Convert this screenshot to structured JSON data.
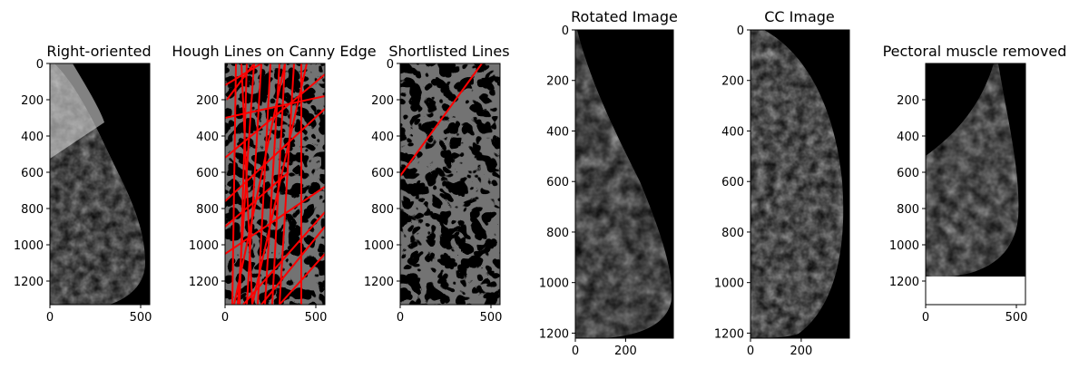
{
  "figure": {
    "background": "#ffffff",
    "image_background": "#000000",
    "line_color": "#ff0000"
  },
  "chart_data": [
    {
      "type": "image",
      "title": "Right-oriented",
      "content": "mammogram-mlo-right-oriented",
      "xlim": [
        0,
        550
      ],
      "ylim": [
        1330,
        0
      ],
      "xticks": [
        0,
        500
      ],
      "yticks": [
        0,
        200,
        400,
        600,
        800,
        1000,
        1200
      ]
    },
    {
      "type": "image",
      "title": "Hough Lines on Canny Edge",
      "content": "canny-edges-with-hough-lines",
      "xlim": [
        0,
        550
      ],
      "ylim": [
        1330,
        0
      ],
      "xticks": [
        0,
        500
      ],
      "yticks": [
        200,
        400,
        600,
        800,
        1000,
        1200
      ],
      "lines": [
        [
          [
            60,
            0
          ],
          [
            40,
            1330
          ]
        ],
        [
          [
            120,
            0
          ],
          [
            80,
            1330
          ]
        ],
        [
          [
            160,
            0
          ],
          [
            70,
            1330
          ]
        ],
        [
          [
            90,
            0
          ],
          [
            150,
            1330
          ]
        ],
        [
          [
            200,
            0
          ],
          [
            120,
            1330
          ]
        ],
        [
          [
            250,
            0
          ],
          [
            180,
            1330
          ]
        ],
        [
          [
            300,
            0
          ],
          [
            220,
            1330
          ]
        ],
        [
          [
            330,
            0
          ],
          [
            260,
            1330
          ]
        ],
        [
          [
            380,
            0
          ],
          [
            300,
            1330
          ]
        ],
        [
          [
            420,
            0
          ],
          [
            420,
            1330
          ]
        ],
        [
          [
            0,
            300
          ],
          [
            550,
            180
          ]
        ],
        [
          [
            0,
            520
          ],
          [
            550,
            60
          ]
        ],
        [
          [
            0,
            760
          ],
          [
            550,
            250
          ]
        ],
        [
          [
            0,
            1050
          ],
          [
            550,
            680
          ]
        ],
        [
          [
            0,
            120
          ],
          [
            200,
            0
          ]
        ],
        [
          [
            100,
            1330
          ],
          [
            550,
            820
          ]
        ],
        [
          [
            200,
            1330
          ],
          [
            550,
            900
          ]
        ],
        [
          [
            300,
            1330
          ],
          [
            550,
            1050
          ]
        ],
        [
          [
            0,
            900
          ],
          [
            350,
            600
          ]
        ],
        [
          [
            50,
            1330
          ],
          [
            330,
            0
          ]
        ],
        [
          [
            10,
            200
          ],
          [
            160,
            0
          ]
        ],
        [
          [
            150,
            1330
          ],
          [
            450,
            0
          ]
        ]
      ]
    },
    {
      "type": "image",
      "title": "Shortlisted Lines",
      "content": "canny-edges-with-shortlisted-line",
      "xlim": [
        0,
        550
      ],
      "ylim": [
        1330,
        0
      ],
      "xticks": [
        0,
        500
      ],
      "yticks": [
        0,
        200,
        400,
        600,
        800,
        1000,
        1200
      ],
      "lines": [
        [
          [
            0,
            620
          ],
          [
            450,
            0
          ]
        ]
      ]
    },
    {
      "type": "image",
      "title": "Rotated Image",
      "content": "mammogram-rotated",
      "xlim": [
        0,
        390
      ],
      "ylim": [
        1220,
        0
      ],
      "xticks": [
        0,
        200
      ],
      "yticks": [
        0,
        200,
        400,
        600,
        800,
        1000,
        1200
      ]
    },
    {
      "type": "image",
      "title": "CC Image",
      "content": "mammogram-cc-view",
      "xlim": [
        0,
        390
      ],
      "ylim": [
        1220,
        0
      ],
      "xticks": [
        0,
        200
      ],
      "yticks": [
        0,
        200,
        400,
        600,
        800,
        1000,
        1200
      ]
    },
    {
      "type": "image",
      "title": "Pectoral muscle removed",
      "content": "mammogram-pectoral-removed",
      "xlim": [
        0,
        550
      ],
      "ylim": [
        1330,
        0
      ],
      "xticks": [
        0,
        500
      ],
      "yticks": [
        200,
        400,
        600,
        800,
        1000,
        1200
      ],
      "blank_region": [
        1170,
        1330
      ]
    }
  ]
}
